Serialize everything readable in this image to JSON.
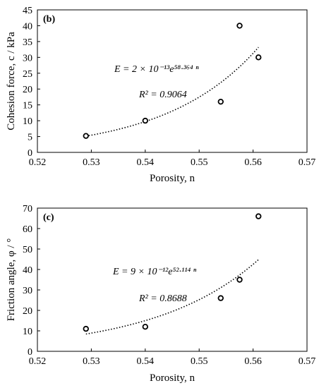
{
  "chart_data": [
    {
      "type": "scatter",
      "panel_label": "(b)",
      "xlabel": "Porosity, n",
      "ylabel": "Cohesion force, c / kPa",
      "xlim": [
        0.52,
        0.57
      ],
      "ylim": [
        0,
        45
      ],
      "xticks": [
        "0.52",
        "0.53",
        "0.54",
        "0.55",
        "0.56",
        "0.57"
      ],
      "yticks": [
        "0",
        "5",
        "10",
        "15",
        "20",
        "25",
        "30",
        "35",
        "40",
        "45"
      ],
      "points": [
        {
          "x": 0.529,
          "y": 5.2
        },
        {
          "x": 0.54,
          "y": 10.0
        },
        {
          "x": 0.554,
          "y": 16.0
        },
        {
          "x": 0.5575,
          "y": 40.0
        },
        {
          "x": 0.561,
          "y": 30.0
        }
      ],
      "trendline": {
        "type": "exponential",
        "a": 2e-13,
        "b": 58.364,
        "x_range": [
          0.529,
          0.561
        ]
      },
      "equation_text": "E = 2 × 10⁻¹³e⁵⁸·³⁶⁴ ⁿ",
      "r2_text": "R² = 0.9064",
      "grid": false,
      "legend": "none"
    },
    {
      "type": "scatter",
      "panel_label": "(c)",
      "xlabel": "Porosity, n",
      "ylabel": "Friction angle, φ / °",
      "xlim": [
        0.52,
        0.57
      ],
      "ylim": [
        0,
        70
      ],
      "xticks": [
        "0.52",
        "0.53",
        "0.54",
        "0.55",
        "0.56",
        "0.57"
      ],
      "yticks": [
        "0",
        "10",
        "20",
        "30",
        "40",
        "50",
        "60",
        "70"
      ],
      "points": [
        {
          "x": 0.529,
          "y": 11.0
        },
        {
          "x": 0.54,
          "y": 12.0
        },
        {
          "x": 0.554,
          "y": 26.0
        },
        {
          "x": 0.5575,
          "y": 35.0
        },
        {
          "x": 0.561,
          "y": 66.0
        }
      ],
      "trendline": {
        "type": "exponential",
        "a": 9e-12,
        "b": 52.114,
        "x_range": [
          0.529,
          0.561
        ]
      },
      "equation_text": "E = 9 × 10⁻¹²e⁵²·¹¹⁴ ⁿ",
      "r2_text": "R² = 0.8688",
      "grid": false,
      "legend": "none"
    }
  ]
}
